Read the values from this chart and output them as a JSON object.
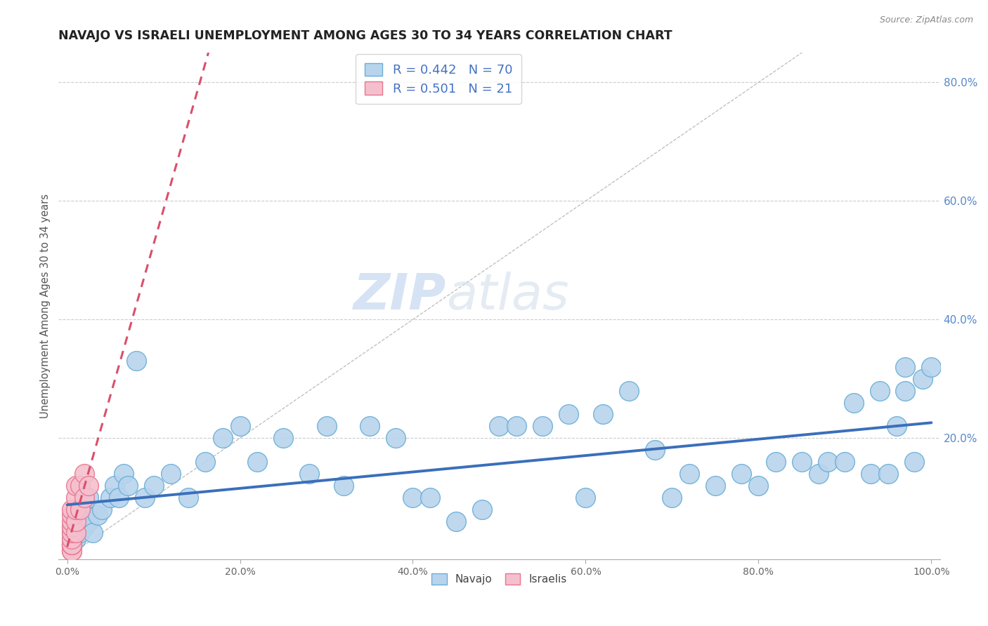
{
  "title": "NAVAJO VS ISRAELI UNEMPLOYMENT AMONG AGES 30 TO 34 YEARS CORRELATION CHART",
  "source": "Source: ZipAtlas.com",
  "ylabel": "Unemployment Among Ages 30 to 34 years",
  "navajo_R": 0.442,
  "navajo_N": 70,
  "israeli_R": 0.501,
  "israeli_N": 21,
  "navajo_color": "#b8d4ed",
  "navajo_edge_color": "#6aaed6",
  "israeli_color": "#f5c0ce",
  "israeli_edge_color": "#e8758e",
  "regression_navajo_color": "#3a6fba",
  "regression_israeli_color": "#d9506a",
  "watermark_zip": "ZIP",
  "watermark_atlas": "atlas",
  "background_color": "#ffffff",
  "navajo_x": [
    0.005,
    0.005,
    0.005,
    0.005,
    0.005,
    0.01,
    0.01,
    0.01,
    0.01,
    0.015,
    0.015,
    0.02,
    0.02,
    0.025,
    0.025,
    0.03,
    0.035,
    0.04,
    0.05,
    0.055,
    0.06,
    0.065,
    0.07,
    0.08,
    0.09,
    0.1,
    0.12,
    0.14,
    0.16,
    0.18,
    0.2,
    0.22,
    0.25,
    0.28,
    0.3,
    0.32,
    0.35,
    0.38,
    0.4,
    0.42,
    0.45,
    0.48,
    0.5,
    0.52,
    0.55,
    0.58,
    0.6,
    0.62,
    0.65,
    0.68,
    0.7,
    0.72,
    0.75,
    0.78,
    0.8,
    0.82,
    0.85,
    0.87,
    0.88,
    0.9,
    0.91,
    0.93,
    0.94,
    0.95,
    0.96,
    0.97,
    0.97,
    0.98,
    0.99,
    1.0
  ],
  "navajo_y": [
    0.02,
    0.02,
    0.03,
    0.04,
    0.05,
    0.03,
    0.04,
    0.05,
    0.06,
    0.04,
    0.06,
    0.05,
    0.08,
    0.06,
    0.1,
    0.04,
    0.07,
    0.08,
    0.1,
    0.12,
    0.1,
    0.14,
    0.12,
    0.33,
    0.1,
    0.12,
    0.14,
    0.1,
    0.16,
    0.2,
    0.22,
    0.16,
    0.2,
    0.14,
    0.22,
    0.12,
    0.22,
    0.2,
    0.1,
    0.1,
    0.06,
    0.08,
    0.22,
    0.22,
    0.22,
    0.24,
    0.1,
    0.24,
    0.28,
    0.18,
    0.1,
    0.14,
    0.12,
    0.14,
    0.12,
    0.16,
    0.16,
    0.14,
    0.16,
    0.16,
    0.26,
    0.14,
    0.28,
    0.14,
    0.22,
    0.28,
    0.32,
    0.16,
    0.3,
    0.32
  ],
  "israeli_x": [
    0.005,
    0.005,
    0.005,
    0.005,
    0.005,
    0.005,
    0.005,
    0.005,
    0.005,
    0.005,
    0.005,
    0.01,
    0.01,
    0.01,
    0.01,
    0.01,
    0.015,
    0.015,
    0.02,
    0.02,
    0.025
  ],
  "israeli_y": [
    0.01,
    0.01,
    0.02,
    0.02,
    0.02,
    0.03,
    0.04,
    0.05,
    0.06,
    0.07,
    0.08,
    0.04,
    0.06,
    0.08,
    0.1,
    0.12,
    0.08,
    0.12,
    0.1,
    0.14,
    0.12
  ],
  "xlim": [
    -0.01,
    1.01
  ],
  "ylim": [
    -0.005,
    0.85
  ]
}
